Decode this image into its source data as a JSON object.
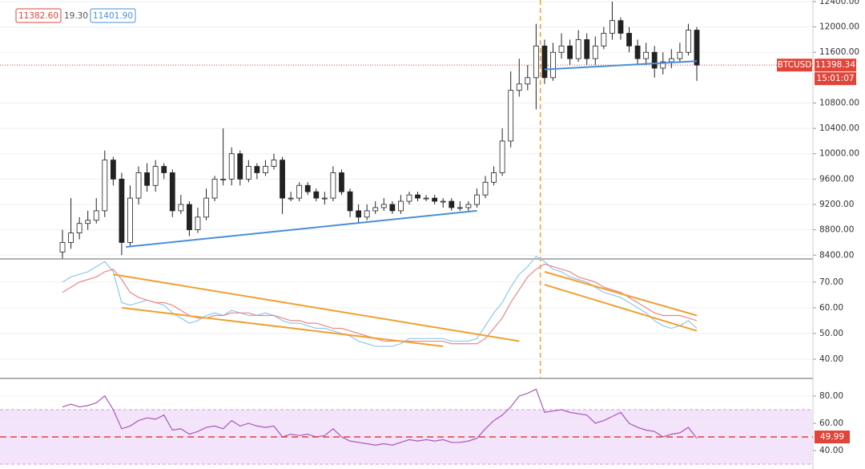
{
  "chart_data": {
    "type": "candlestick",
    "symbol": "BTCUSD",
    "countdown": "15:01:07",
    "header_values": [
      "11382.60",
      "19.30",
      "11401.90"
    ],
    "open": [
      8450,
      8600,
      8750,
      8900,
      8950,
      9100,
      9900,
      9600,
      8600,
      9300,
      9700,
      9500,
      9800,
      9700,
      9100,
      9200,
      8800,
      9000,
      9300,
      9600,
      9600,
      10000,
      9600,
      9800,
      9700,
      9800,
      9900,
      9300,
      9300,
      9500,
      9400,
      9300,
      9300,
      9700,
      9400,
      9100,
      9000,
      9100,
      9150,
      9200,
      9100,
      9250,
      9350,
      9300,
      9300,
      9250,
      9250,
      9150,
      9150,
      9200,
      9350,
      9550,
      9700,
      10200,
      11000,
      11100,
      11200,
      11700,
      11200,
      11600,
      11700,
      11500,
      11800,
      11500,
      11700,
      11900,
      12100,
      11900,
      11700,
      11500,
      11600,
      11350,
      11450,
      11500,
      11600,
      11950
    ],
    "high": [
      8800,
      9300,
      9000,
      9100,
      9300,
      10050,
      9950,
      9700,
      9500,
      9800,
      9850,
      9900,
      9850,
      9750,
      9350,
      9250,
      9150,
      9450,
      9650,
      10400,
      10100,
      10050,
      9900,
      9850,
      9900,
      10000,
      9950,
      9400,
      9550,
      9550,
      9450,
      9400,
      9800,
      9750,
      9450,
      9200,
      9200,
      9250,
      9300,
      9250,
      9350,
      9400,
      9400,
      9350,
      9350,
      9300,
      9300,
      9250,
      9250,
      9450,
      9650,
      9800,
      10400,
      11300,
      11500,
      11400,
      12050,
      11800,
      11750,
      11900,
      11800,
      11950,
      11900,
      11850,
      12000,
      12400,
      12150,
      12000,
      11800,
      11750,
      11700,
      11600,
      11650,
      11750,
      12050,
      12000
    ],
    "low": [
      8350,
      8500,
      8650,
      8800,
      8900,
      9000,
      9500,
      8400,
      8550,
      9200,
      9400,
      9400,
      9600,
      9000,
      9050,
      8700,
      8750,
      8950,
      9250,
      9500,
      9500,
      9500,
      9550,
      9600,
      9650,
      9750,
      9050,
      9250,
      9250,
      9350,
      9250,
      9200,
      9250,
      9350,
      9000,
      8900,
      8950,
      9050,
      9100,
      9050,
      9050,
      9200,
      9250,
      9250,
      9200,
      9150,
      9100,
      9100,
      9100,
      9150,
      9300,
      9500,
      9650,
      10100,
      10900,
      11000,
      10700,
      11100,
      11150,
      11500,
      11400,
      11450,
      11400,
      11400,
      11650,
      11800,
      11800,
      11600,
      11400,
      11400,
      11200,
      11250,
      11350,
      11450,
      11550,
      11150
    ],
    "close": [
      8600,
      8750,
      8900,
      8950,
      9100,
      9900,
      9600,
      8600,
      9300,
      9700,
      9500,
      9800,
      9700,
      9100,
      9200,
      8800,
      9000,
      9300,
      9600,
      9600,
      10000,
      9600,
      9800,
      9700,
      9800,
      9900,
      9300,
      9300,
      9500,
      9400,
      9300,
      9300,
      9700,
      9400,
      9100,
      9000,
      9100,
      9150,
      9200,
      9100,
      9250,
      9350,
      9300,
      9300,
      9250,
      9250,
      9150,
      9150,
      9200,
      9350,
      9550,
      9700,
      10200,
      11000,
      11100,
      11200,
      11700,
      11200,
      11600,
      11700,
      11500,
      11800,
      11500,
      11700,
      11900,
      12100,
      11900,
      11700,
      11500,
      11600,
      11350,
      11450,
      11500,
      11600,
      11950,
      11398.34
    ],
    "color_up": "#ffffff",
    "color_down": "#222222",
    "ylim": [
      8340,
      12425
    ],
    "yticks": [
      {
        "value": 8400,
        "label": "8400.00"
      },
      {
        "value": 8800,
        "label": "8800.00"
      },
      {
        "value": 9200,
        "label": "9200.00"
      },
      {
        "value": 9600,
        "label": "9600.00"
      },
      {
        "value": 10000,
        "label": "10000.00"
      },
      {
        "value": 10400,
        "label": "10400.00"
      },
      {
        "value": 10800,
        "label": "10800.00"
      },
      {
        "value": 11600,
        "label": "11600.00"
      },
      {
        "value": 12000,
        "label": "12000.00"
      },
      {
        "value": 12400,
        "label": "12400.00"
      }
    ],
    "last_price": 11398.34,
    "last_price_color": "#e0453a",
    "vline_x": 56.5,
    "vline_color": "#f0a030",
    "trendlines": [
      {
        "color": "#4a8fd8",
        "x": [
          7.5,
          49
        ],
        "y": [
          8530,
          9100
        ]
      },
      {
        "color": "#4a8fd8",
        "x": [
          57,
          75
        ],
        "y": [
          11330,
          11460
        ]
      }
    ],
    "indicator": {
      "ylim": [
        32.5,
        79
      ],
      "yticks": [
        {
          "value": 40,
          "label": "40.00"
        },
        {
          "value": 50,
          "label": "50.00"
        },
        {
          "value": 60,
          "label": "60.00"
        },
        {
          "value": 70,
          "label": "70.00"
        }
      ],
      "series": [
        {
          "color": "#8ec9ec",
          "values": [
            70,
            72,
            73,
            74,
            76,
            78,
            74,
            62,
            61,
            62,
            63,
            62,
            61,
            58,
            56,
            54,
            55,
            57,
            58,
            57,
            59,
            58,
            57,
            57,
            58,
            57,
            55,
            54,
            54,
            53,
            52,
            52,
            51,
            50,
            49,
            47,
            46,
            45,
            45,
            45,
            46,
            48,
            48,
            48,
            48,
            48,
            47,
            47,
            47,
            48,
            53,
            58,
            62,
            68,
            73,
            76,
            80,
            78,
            75,
            74,
            72,
            71,
            70,
            68,
            66,
            65,
            64,
            62,
            60,
            58,
            55,
            53,
            52,
            53,
            55,
            52
          ]
        },
        {
          "color": "#e98787",
          "values": [
            66,
            68,
            70,
            71,
            72,
            74,
            75,
            71,
            66,
            64,
            63,
            62,
            62,
            61,
            59,
            57,
            56,
            56,
            57,
            57,
            58,
            58,
            58,
            57,
            57,
            57,
            56,
            55,
            55,
            54,
            54,
            53,
            52,
            52,
            51,
            50,
            49,
            48,
            47,
            47,
            47,
            47,
            47,
            47,
            47,
            47,
            46,
            46,
            46,
            46,
            48,
            52,
            56,
            62,
            67,
            72,
            75,
            77,
            76,
            75,
            74,
            72,
            71,
            70,
            68,
            67,
            66,
            64,
            62,
            60,
            58,
            57,
            57,
            57,
            56,
            55
          ]
        }
      ],
      "trendlines": [
        {
          "color": "#f0a030",
          "x": [
            6,
            54
          ],
          "y": [
            73,
            47
          ]
        },
        {
          "color": "#f0a030",
          "x": [
            7,
            45
          ],
          "y": [
            60,
            45
          ]
        },
        {
          "color": "#f0a030",
          "x": [
            57,
            75
          ],
          "y": [
            74,
            57
          ]
        },
        {
          "color": "#f0a030",
          "x": [
            57,
            75
          ],
          "y": [
            69,
            51
          ]
        }
      ]
    },
    "rsi": {
      "ylim": [
        26.5,
        92.9
      ],
      "yticks": [
        {
          "value": 40,
          "label": "40.00"
        },
        {
          "value": 60,
          "label": "60.00"
        },
        {
          "value": 80,
          "label": "80.00"
        }
      ],
      "band": [
        30,
        70
      ],
      "band_color": "#f3e3fb",
      "color": "#a55cb5",
      "values": [
        72,
        74,
        72,
        73,
        75,
        80,
        70,
        56,
        58,
        62,
        64,
        63,
        66,
        55,
        56,
        52,
        54,
        57,
        58,
        56,
        62,
        58,
        60,
        58,
        57,
        58,
        50,
        52,
        51,
        52,
        50,
        51,
        56,
        50,
        47,
        46,
        45,
        44,
        45,
        44,
        46,
        48,
        47,
        48,
        47,
        48,
        46,
        46,
        47,
        49,
        56,
        62,
        66,
        72,
        80,
        82,
        85,
        68,
        69,
        70,
        68,
        67,
        66,
        60,
        62,
        65,
        68,
        60,
        57,
        55,
        54,
        50,
        52,
        53,
        57,
        49
      ],
      "level": 49.99,
      "level_color": "#e0453a"
    }
  }
}
